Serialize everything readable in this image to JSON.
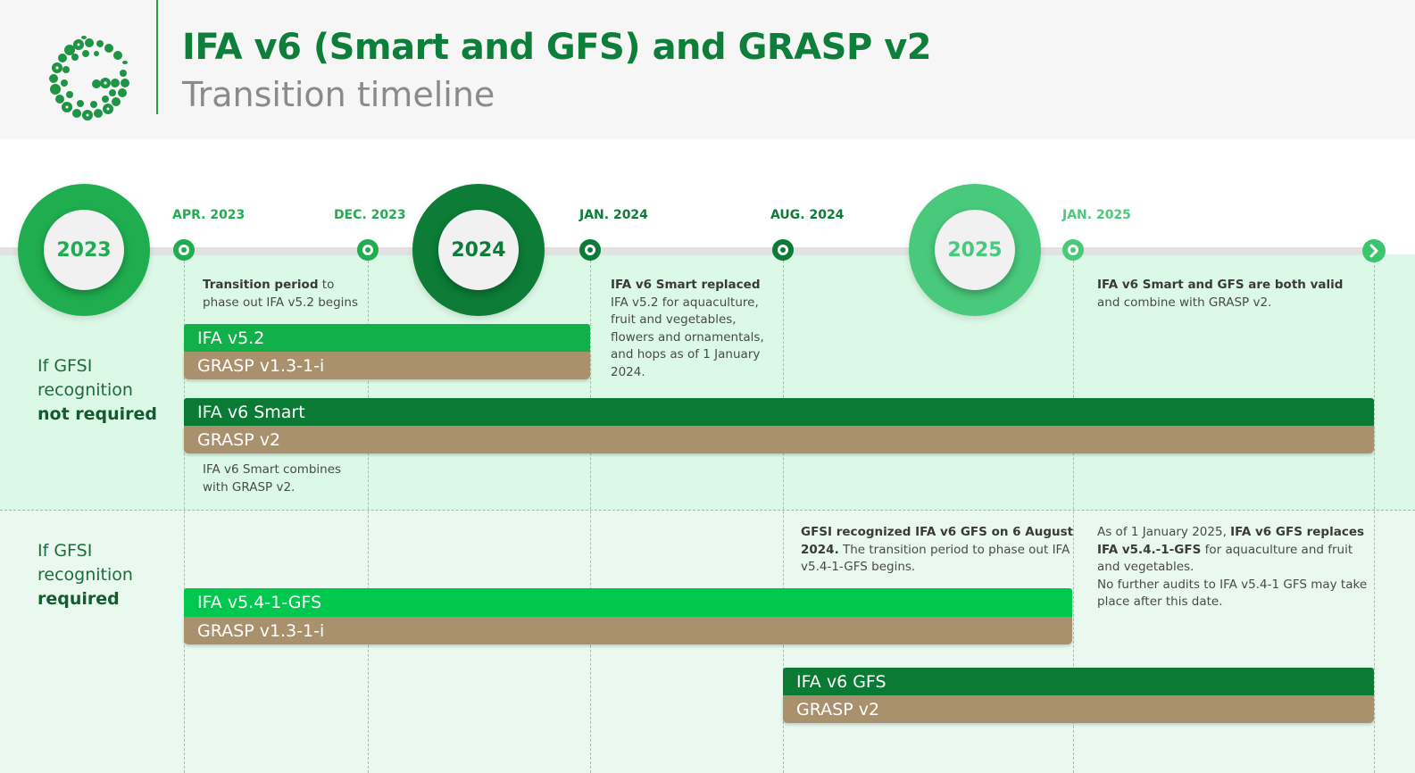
{
  "header": {
    "title": "IFA v6 (Smart and GFS) and GRASP v2",
    "subtitle": "Transition timeline"
  },
  "timeline": {
    "years": [
      {
        "label": "2023",
        "color": "#1fad4f"
      },
      {
        "label": "2024",
        "color": "#0c7c37"
      },
      {
        "label": "2025",
        "color": "#49c97b"
      }
    ],
    "dates": [
      {
        "label": "APR. 2023",
        "color": "#1fad4f"
      },
      {
        "label": "DEC. 2023",
        "color": "#1fad4f"
      },
      {
        "label": "JAN. 2024",
        "color": "#0c7c37"
      },
      {
        "label": "AUG. 2024",
        "color": "#0c7c37"
      },
      {
        "label": "JAN. 2025",
        "color": "#49c97b"
      }
    ]
  },
  "rows": {
    "not_required": {
      "line1": "If GFSI",
      "line2": "recognition",
      "line3": "not required"
    },
    "required": {
      "line1": "If GFSI",
      "line2": "recognition",
      "line3": "required"
    }
  },
  "notes": {
    "transition": {
      "bold": "Transition period",
      "text1": " to",
      "text2": "phase out IFA v5.2  begins"
    },
    "smart_replaced": {
      "bold": "IFA v6 Smart replaced",
      "lines": [
        "IFA v5.2 for aquaculture,",
        "fruit and vegetables,",
        "flowers and ornamentals,",
        "and hops as of 1 January",
        "2024."
      ]
    },
    "both_valid": {
      "bold": "IFA v6 Smart and GFS are both valid",
      "text": "and combine with GRASP v2."
    },
    "smart_combines": {
      "line1": "IFA v6 Smart combines",
      "line2": "with GRASP v2."
    },
    "gfsi_recognized": {
      "bold1": "GFSI recognized IFA v6 GFS on 6 August",
      "bold2": "2024.",
      "text1": " The transition period to phase out IFA",
      "text2": "v5.4-1-GFS begins."
    },
    "gfs_replaces": {
      "text1": "As of 1 January 2025, ",
      "bold1": "IFA v6 GFS replaces",
      "bold2": "IFA v5.4.-1-GFS",
      "text2": " for aquaculture and fruit",
      "text3": "and vegetables.",
      "text4": "No further audits to IFA v5.4-1 GFS may take",
      "text5": "place after this date."
    }
  },
  "bars": {
    "ifa_v52": "IFA v5.2",
    "grasp_v131_a": "GRASP v1.3-1-i",
    "ifa_v6_smart": "IFA v6 Smart",
    "grasp_v2_a": "GRASP v2",
    "ifa_v541_gfs": "IFA v5.4-1-GFS",
    "grasp_v131_b": "GRASP v1.3-1-i",
    "ifa_v6_gfs": "IFA v6 GFS",
    "grasp_v2_b": "GRASP v2"
  },
  "colors": {
    "brand_green": "#0d7f3a",
    "bar_light_green": "#12b04b",
    "bar_dark_green": "#0b7a35",
    "bar_bright_green": "#00c84f",
    "grasp_tan": "#a8916c"
  }
}
